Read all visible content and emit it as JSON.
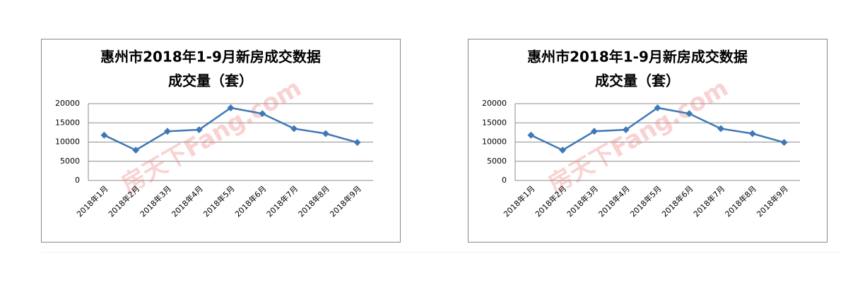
{
  "chart_data": [
    {
      "type": "line",
      "title": "惠州市2018年1-9月新房成交数据",
      "subtitle": "成交量（套）",
      "watermark": "房天下Fang.com",
      "categories": [
        "2018年1月",
        "2018年2月",
        "2018年3月",
        "2018年4月",
        "2018年5月",
        "2018年6月",
        "2018年7月",
        "2018年8月",
        "2018年9月"
      ],
      "values": [
        11800,
        7900,
        12800,
        13200,
        18900,
        17400,
        13500,
        12200,
        9900
      ],
      "color": "#3f78b6",
      "ylim": [
        0,
        20000
      ],
      "yticks": [
        0,
        5000,
        10000,
        15000,
        20000
      ],
      "grid": true
    },
    {
      "type": "line",
      "title": "惠州市2018年1-9月新房成交数据",
      "subtitle": "成交量（套）",
      "watermark": "房天下Fang.com",
      "categories": [
        "2018年1月",
        "2018年2月",
        "2018年3月",
        "2018年4月",
        "2018年5月",
        "2018年6月",
        "2018年7月",
        "2018年8月",
        "2018年9月"
      ],
      "values": [
        11800,
        7900,
        12800,
        13200,
        18900,
        17400,
        13500,
        12200,
        9900
      ],
      "color": "#3f78b6",
      "ylim": [
        0,
        20000
      ],
      "yticks": [
        0,
        5000,
        10000,
        15000,
        20000
      ],
      "grid": true
    }
  ]
}
